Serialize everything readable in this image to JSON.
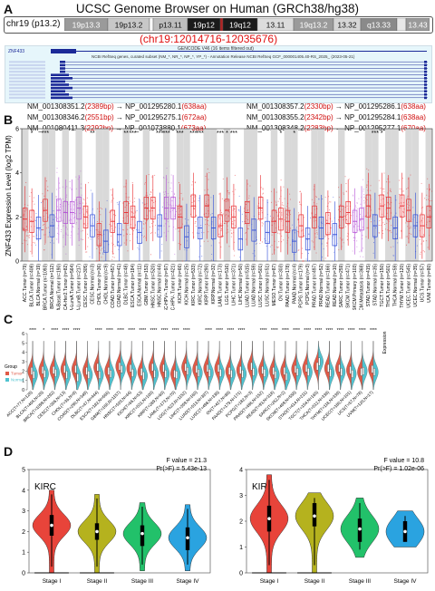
{
  "panel_labels": {
    "a": "A",
    "b": "B",
    "c": "C",
    "d": "D"
  },
  "panel_a": {
    "title": "UCSC Genome Browser on Human (GRCh38/hg38)",
    "chrom": "chr19 (p13.2)",
    "bands": [
      {
        "label": "19p13.3",
        "color": "#9a9a9a"
      },
      {
        "label": "19p13.2",
        "color": "#c8c8c8"
      },
      {
        "label": "",
        "color": "#ffffff"
      },
      {
        "label": "p13.11",
        "color": "#bdbdbd"
      },
      {
        "label": "19p12",
        "color": "#1a1a1a"
      },
      {
        "label": "",
        "color": "#b22222"
      },
      {
        "label": "19q12",
        "color": "#1a1a1a"
      },
      {
        "label": "13.11",
        "color": "#dcdcdc"
      },
      {
        "label": "19q13.2",
        "color": "#9a9a9a"
      },
      {
        "label": "13.32",
        "color": "#d6d6d6"
      },
      {
        "label": "q13.33",
        "color": "#8a8a8a"
      },
      {
        "label": "",
        "color": "#e8e8e8"
      },
      {
        "label": "13.43",
        "color": "#9a9a9a"
      }
    ],
    "region": "(chr19:12014716-12035676)",
    "track1": "GENCODE V46 (16 items filtered out)",
    "track2": "NCBI RefSeq genes, curated subset (NM_*, NR_*, NP_*, YP_*) - Annotation Release NCBI RefSeq GCF_000001405.40-RS_2025_ (2023-05-21)",
    "gene_label": "ZNF433",
    "transcripts": [
      {
        "id": "NM_001308351.2",
        "bp": "2389bp",
        "np": "NP_001295280.1",
        "aa": "638aa"
      },
      {
        "id": "NM_001308357.2",
        "bp": "2330bp",
        "np": "NP_001295286.1",
        "aa": "638aa"
      },
      {
        "id": "NM_001308346.2",
        "bp": "2551bp",
        "np": "NP_001295275.1",
        "aa": "672aa"
      },
      {
        "id": "NM_001308355.2",
        "bp": "2342bp",
        "np": "NP_001295284.1",
        "aa": "638aa"
      },
      {
        "id": "NM_001080411.3",
        "bp": "2292bp",
        "np": "NP_001073880.1",
        "aa": "673aa"
      },
      {
        "id": "NM_001308348.2",
        "bp": "2283bp",
        "np": "NP_001295277.1",
        "aa": "670aa"
      }
    ]
  },
  "chart_data": [
    {
      "id": "B",
      "type": "box",
      "ylabel": "ZNF433 Expression Level (log2 TPM)",
      "ylim": [
        0,
        6
      ],
      "yticks": [
        0,
        2,
        4,
        6
      ],
      "categories": [
        "ACC.Tumor (n=79)",
        "BLCA.Tumor (n=408)",
        "BLCA.Normal (n=19)",
        "BRCA.Tumor (n=1093)",
        "BRCA.Normal (n=112)",
        "BRCA-Basal.Tumor (n=190)",
        "BRCA-Her2.Tumor (n=82)",
        "BRCA-LumA.Tumor (n=564)",
        "BRCA-LumB.Tumor (n=217)",
        "CESC.Tumor (n=305)",
        "CESC.Normal (n=3)",
        "CHOL.Tumor (n=36)",
        "CHOL.Normal (n=9)",
        "COAD.Tumor (n=457)",
        "COAD.Normal (n=41)",
        "DLBC.Tumor (n=48)",
        "ESCA.Tumor (n=184)",
        "ESCA.Normal (n=11)",
        "GBM.Tumor (n=153)",
        "HNSC.Tumor (n=520)",
        "HNSC.Normal (n=44)",
        "HNSC-HPV+.Tumor (n=97)",
        "HNSC-HPV-.Tumor (n=421)",
        "KICH.Tumor (n=66)",
        "KICH.Normal (n=25)",
        "KIRC.Tumor (n=533)",
        "KIRC.Normal (n=72)",
        "KIRP.Tumor (n=290)",
        "KIRP.Normal (n=32)",
        "LAML.Tumor (n=173)",
        "LGG.Tumor (n=516)",
        "LIHC.Tumor (n=371)",
        "LIHC.Normal (n=50)",
        "LUAD.Tumor (n=515)",
        "LUAD.Normal (n=59)",
        "LUSC.Tumor (n=501)",
        "LUSC.Normal (n=51)",
        "MESO.Tumor (n=87)",
        "OV.Tumor (n=303)",
        "PAAD.Tumor (n=178)",
        "PAAD.Normal (n=4)",
        "PCPG.Tumor (n=179)",
        "PCPG.Normal (n=3)",
        "PRAD.Tumor (n=497)",
        "PRAD.Normal (n=52)",
        "READ.Tumor (n=166)",
        "READ.Normal (n=10)",
        "SARC.Tumor (n=259)",
        "SKCM.Tumor (n=471)",
        "SKCM.Primary (n=103)",
        "SKCM.Metastasis (n=368)",
        "STAD.Tumor (n=415)",
        "STAD.Normal (n=35)",
        "TGCT.Tumor (n=150)",
        "THCA.Tumor (n=501)",
        "THCA.Normal (n=59)",
        "THYM.Tumor (n=120)",
        "UCEC.Tumor (n=545)",
        "UCEC.Normal (n=35)",
        "UCS.Tumor (n=57)",
        "UVM.Tumor (n=80)"
      ],
      "group": [
        "T",
        "T",
        "N",
        "T",
        "N",
        "S",
        "S",
        "S",
        "S",
        "T",
        "N",
        "T",
        "N",
        "T",
        "N",
        "T",
        "T",
        "N",
        "T",
        "T",
        "N",
        "S",
        "S",
        "T",
        "N",
        "T",
        "N",
        "T",
        "N",
        "T",
        "T",
        "T",
        "N",
        "T",
        "N",
        "T",
        "N",
        "T",
        "T",
        "T",
        "N",
        "T",
        "N",
        "T",
        "N",
        "T",
        "N",
        "T",
        "T",
        "S",
        "S",
        "T",
        "N",
        "T",
        "T",
        "N",
        "T",
        "T",
        "N",
        "T",
        "T"
      ],
      "medians": [
        1.9,
        1.8,
        1.5,
        2.3,
        1.6,
        2.3,
        2.2,
        2.2,
        2.4,
        2.0,
        1.6,
        1.2,
        0.9,
        1.8,
        1.2,
        2.2,
        2.0,
        1.3,
        2.4,
        2.4,
        1.6,
        2.4,
        2.4,
        2.0,
        1.1,
        2.5,
        1.5,
        2.5,
        1.5,
        1.6,
        2.3,
        2.0,
        1.0,
        2.2,
        1.4,
        2.4,
        1.3,
        1.8,
        1.9,
        1.8,
        0.9,
        1.6,
        1.0,
        2.0,
        1.5,
        1.7,
        1.2,
        2.0,
        2.2,
        1.8,
        1.9,
        2.5,
        1.6,
        2.5,
        2.4,
        1.5,
        2.5,
        2.3,
        1.6,
        1.6,
        2.0
      ],
      "significance": [
        "",
        "*",
        "",
        "***",
        "",
        "",
        "",
        "",
        "",
        "",
        "**",
        "",
        "",
        "",
        "",
        "**",
        "***",
        "",
        "",
        "",
        "***",
        "***",
        "",
        "***",
        "",
        "***",
        "***",
        "",
        "",
        "***",
        "*",
        "***",
        "",
        "",
        "",
        "",
        "",
        "",
        "*",
        "",
        "*",
        "",
        "",
        "",
        "",
        "",
        "",
        "",
        "",
        "",
        "",
        "",
        "***",
        "*",
        "",
        "",
        "",
        "",
        "",
        "",
        ""
      ]
    },
    {
      "id": "C",
      "type": "split-violin",
      "ylabel": "Expression",
      "ylim": [
        0,
        6
      ],
      "yticks": [
        0,
        1,
        2,
        3,
        4,
        5,
        6
      ],
      "legend_title": "Group",
      "legend": [
        {
          "name": "Tumor",
          "color": "#e05a47"
        },
        {
          "name": "Normal",
          "color": "#4fc3d0"
        }
      ],
      "categories": [
        "ACC(T=77,N=128)",
        "BLCA(T=404,N=28)",
        "BRCA(T=1099,N=292)",
        "CESC(T=306,N=13)",
        "CHOL(T=36,N=9)",
        "COAD(T=290,N=349)",
        "DLBC(T=47,N=444)",
        "ESCA(T=182,N=666)",
        "GBM(T=166,N=1157)",
        "HNSC(T=520,N=44)",
        "KICH(T=66,N=53)",
        "KIRC(T=531,N=100)",
        "KIRP(T=289,N=60)",
        "LAML(T=173,N=70)",
        "LGG(T=523,N=1152)",
        "LIHC(T=369,N=160)",
        "LUAD(T=513,N=397)",
        "LUSC(T=498,N=338)",
        "OV(T=427,N=88)",
        "PAAD(T=179,N=171)",
        "PCPG(T=182,N=3)",
        "PRAD(T=496,N=152)",
        "READ(T=93,N=318)",
        "SARC(T=262,N=2)",
        "SKCM(T=469,N=558)",
        "STAD(T=414,N=211)",
        "TGCT(T=154,N=165)",
        "THCA(T=512,N=338)",
        "THYM(T=118,N=339)",
        "UCEC(T=180,N=101)",
        "UCS(T=57,N=78)",
        "UVM(T=120,N=17)"
      ],
      "significance": [
        "****",
        "*",
        "****",
        "****",
        "****",
        "",
        "****",
        "****",
        "****",
        "****",
        "****",
        "****",
        "****",
        "****",
        "****",
        "",
        "****",
        "****",
        "****",
        "****",
        "",
        "****",
        "****",
        "****",
        "****",
        "****",
        "****",
        "****",
        "****",
        "****",
        "****",
        "****"
      ],
      "tumor_medians": [
        2.0,
        2.1,
        2.1,
        2.2,
        2.2,
        2.0,
        2.4,
        2.0,
        2.5,
        2.3,
        1.9,
        2.4,
        2.3,
        1.7,
        2.4,
        2.2,
        2.3,
        2.3,
        2.0,
        2.1,
        2.5,
        2.1,
        2.0,
        2.0,
        2.2,
        2.3,
        2.5,
        2.3,
        2.3,
        2.1,
        1.9,
        2.2
      ],
      "normal_medians": [
        1.6,
        1.7,
        1.8,
        1.6,
        1.3,
        1.6,
        1.6,
        1.7,
        2.2,
        1.8,
        1.5,
        1.7,
        1.7,
        1.6,
        2.0,
        1.8,
        1.8,
        1.8,
        1.7,
        1.7,
        1.9,
        1.8,
        1.6,
        1.4,
        1.9,
        1.9,
        3.0,
        1.8,
        1.9,
        1.7,
        2.0,
        1.9
      ]
    },
    {
      "id": "D-KIRC",
      "type": "violin",
      "title": "KIRC",
      "annotation": [
        "F value = 21.3",
        "Pr(>F) = 5.43e-13"
      ],
      "ylim": [
        0,
        5
      ],
      "yticks": [
        0,
        1,
        2,
        3,
        4,
        5
      ],
      "categories": [
        "Stage I",
        "Stage II",
        "Stage III",
        "Stage IV"
      ],
      "colors": [
        "#e8443a",
        "#b5b21e",
        "#22c16a",
        "#2aa3e0"
      ],
      "medians": [
        2.3,
        2.0,
        1.9,
        1.7
      ],
      "q1": [
        1.8,
        1.6,
        1.3,
        1.1
      ],
      "q3": [
        2.8,
        2.4,
        2.3,
        2.2
      ],
      "min": [
        0.0,
        0.0,
        0.1,
        0.1
      ],
      "max": [
        4.0,
        3.8,
        3.4,
        3.3
      ]
    },
    {
      "id": "D-KIRP",
      "type": "violin",
      "title": "KIRP",
      "annotation": [
        "F value = 10.8",
        "Pr(>F) = 1.02e-06"
      ],
      "ylim": [
        0,
        4
      ],
      "yticks": [
        0,
        1,
        2,
        3,
        4
      ],
      "categories": [
        "Stage I",
        "Stage II",
        "Stage III",
        "Stage IV"
      ],
      "colors": [
        "#e8443a",
        "#b5b21e",
        "#22c16a",
        "#2aa3e0"
      ],
      "medians": [
        2.1,
        2.2,
        1.7,
        1.6
      ],
      "q1": [
        1.6,
        1.8,
        1.2,
        1.2
      ],
      "q3": [
        2.6,
        2.7,
        2.1,
        2.0
      ],
      "min": [
        0.0,
        0.0,
        0.6,
        1.0
      ],
      "max": [
        3.8,
        3.1,
        2.9,
        2.4
      ]
    }
  ]
}
